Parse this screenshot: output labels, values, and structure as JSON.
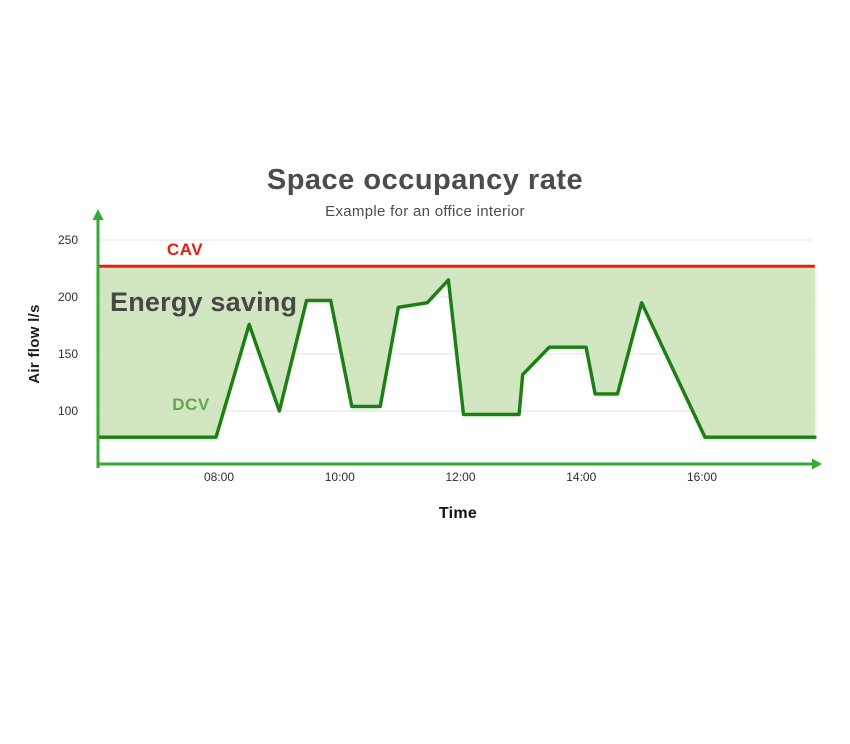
{
  "chart_data": {
    "type": "area",
    "title": "Space occupancy rate",
    "subtitle": "Example for an office interior",
    "xlabel": "Time",
    "ylabel": "Air flow l/s",
    "x_ticks": [
      {
        "label": "08:00",
        "hour": 8
      },
      {
        "label": "10:00",
        "hour": 10
      },
      {
        "label": "12:00",
        "hour": 12
      },
      {
        "label": "14:00",
        "hour": 14
      },
      {
        "label": "16:00",
        "hour": 16
      }
    ],
    "x_range_hours": [
      6,
      18
    ],
    "y_tick_values": [
      100,
      150,
      200,
      250
    ],
    "y_range": [
      50,
      265
    ],
    "grid": "horizontal-only",
    "energy_label": "Energy saving",
    "series": [
      {
        "name": "CAV",
        "label": "CAV",
        "type": "constant-line",
        "value": 227,
        "color": "#ea1c0d"
      },
      {
        "name": "DCV",
        "label": "DCV",
        "type": "line",
        "color": "#1d7d17",
        "points_hour_vs_airflow": [
          [
            6.0,
            77
          ],
          [
            7.95,
            77
          ],
          [
            8.5,
            176
          ],
          [
            9.0,
            100
          ],
          [
            9.45,
            197
          ],
          [
            9.85,
            197
          ],
          [
            10.2,
            104
          ],
          [
            10.67,
            104
          ],
          [
            10.97,
            191
          ],
          [
            11.45,
            195
          ],
          [
            11.8,
            215
          ],
          [
            12.05,
            97
          ],
          [
            12.97,
            97
          ],
          [
            13.03,
            132
          ],
          [
            13.47,
            156
          ],
          [
            14.08,
            156
          ],
          [
            14.23,
            115
          ],
          [
            14.6,
            115
          ],
          [
            15.0,
            195
          ],
          [
            16.05,
            77
          ],
          [
            17.87,
            77
          ]
        ]
      }
    ],
    "colors": {
      "axis_green": "#35a935",
      "dcv_green": "#1d7d17",
      "cav_red": "#ea1c0d",
      "fill_green": "#cfe6bd",
      "grid": "#e2e2e2",
      "title_gray": "#4c4c4c",
      "dcv_label_green": "#61a84e",
      "energy_text": "#474747"
    }
  }
}
